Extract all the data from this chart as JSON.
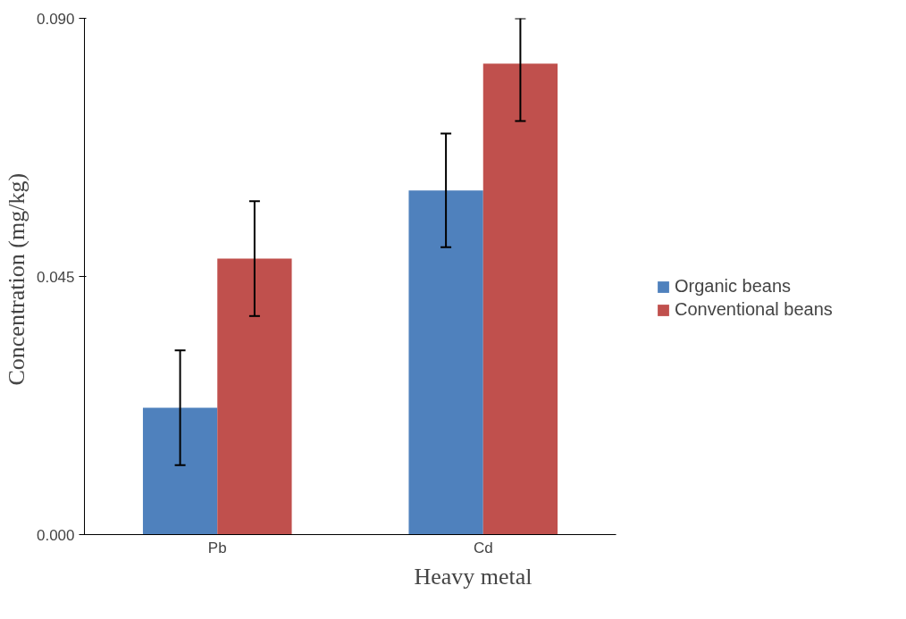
{
  "chart_data": {
    "type": "bar",
    "xlabel": "Heavy metal",
    "ylabel": "Concentration  (mg/kg)",
    "categories": [
      "Pb",
      "Cd"
    ],
    "series": [
      {
        "name": "Organic beans",
        "color": "#4f81bd",
        "values": [
          0.0221,
          0.06
        ],
        "errors": [
          0.01,
          0.0099
        ]
      },
      {
        "name": "Conventional beans",
        "color": "#c0504d",
        "values": [
          0.0481,
          0.0821
        ],
        "errors": [
          0.01,
          [
            0.0721,
            0.09
          ]
        ]
      }
    ],
    "ylim": [
      0,
      0.09
    ],
    "yticks": [
      {
        "value": 0,
        "label": "0.000"
      },
      {
        "value": 0.045,
        "label": "0.045"
      },
      {
        "value": 0.09,
        "label": "0.090"
      }
    ],
    "grid": false,
    "legend": "right"
  }
}
